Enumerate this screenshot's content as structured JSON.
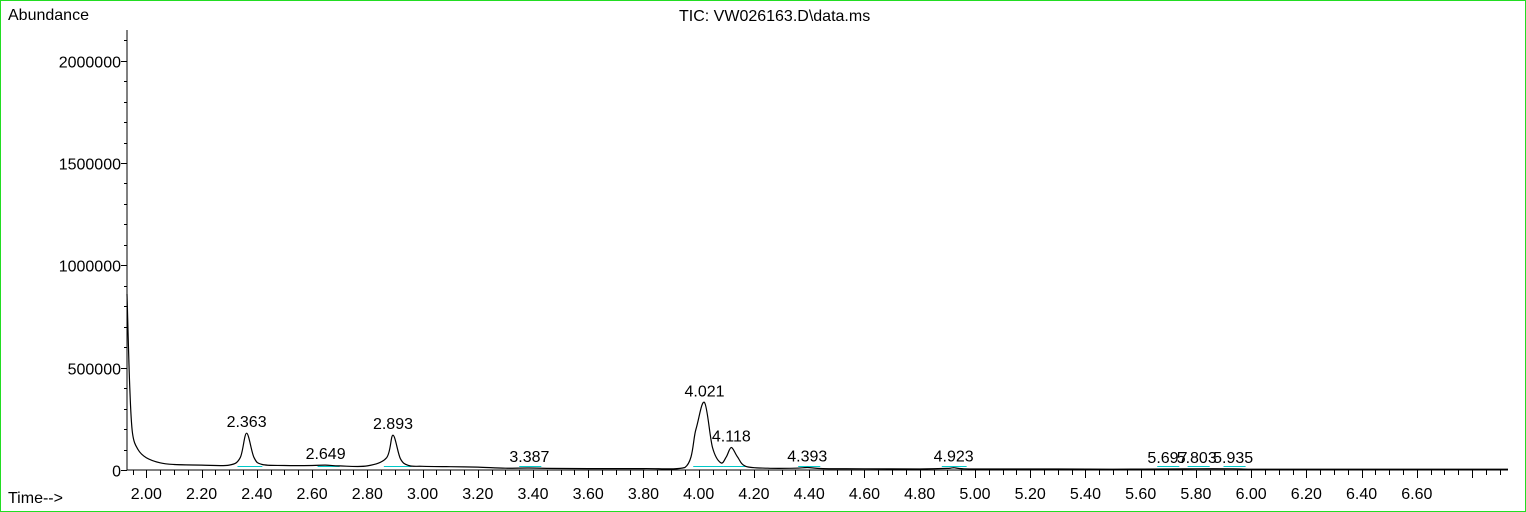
{
  "chart_data": {
    "type": "line",
    "title": "TIC: VW026163.D\\data.ms",
    "xlabel": "Time-->",
    "ylabel": "Abundance",
    "xlim": [
      1.93,
      6.93
    ],
    "ylim": [
      0,
      2150000
    ],
    "x_ticks": [
      2.0,
      2.2,
      2.4,
      2.6,
      2.8,
      3.0,
      3.2,
      3.4,
      3.6,
      3.8,
      4.0,
      4.2,
      4.4,
      4.6,
      4.8,
      5.0,
      5.2,
      5.4,
      5.6,
      5.8,
      6.0,
      6.2,
      6.4,
      6.6
    ],
    "x_tick_labels": [
      "2.00",
      "2.20",
      "2.40",
      "2.60",
      "2.80",
      "3.00",
      "3.20",
      "3.40",
      "3.60",
      "3.80",
      "4.00",
      "4.20",
      "4.40",
      "4.60",
      "4.80",
      "5.00",
      "5.20",
      "5.40",
      "5.60",
      "5.80",
      "6.00",
      "6.20",
      "6.40",
      "6.60"
    ],
    "y_ticks": [
      0,
      500000,
      1000000,
      1500000,
      2000000
    ],
    "y_tick_labels": [
      "0",
      "500000",
      "1000000",
      "1500000",
      "2000000"
    ],
    "grid": false,
    "series": [
      {
        "x": [
          1.93,
          1.94,
          1.95,
          1.97,
          2.0,
          2.05,
          2.1,
          2.2,
          2.3,
          2.34,
          2.363,
          2.39,
          2.42,
          2.5,
          2.6,
          2.649,
          2.7,
          2.8,
          2.87,
          2.893,
          2.92,
          2.95,
          3.0,
          3.1,
          3.2,
          3.3,
          3.387,
          3.45,
          3.6,
          3.8,
          3.95,
          3.99,
          4.021,
          4.05,
          4.08,
          4.1,
          4.118,
          4.14,
          4.17,
          4.25,
          4.35,
          4.393,
          4.45,
          4.6,
          4.8,
          4.9,
          4.923,
          4.96,
          5.1,
          5.3,
          5.5,
          5.7,
          5.8,
          5.935,
          6.0,
          6.2,
          6.4,
          6.6,
          6.8,
          6.93
        ],
        "y": [
          860000,
          400000,
          180000,
          100000,
          60000,
          35000,
          27000,
          24000,
          24000,
          60000,
          180000,
          60000,
          27000,
          22000,
          22000,
          24000,
          20000,
          20000,
          60000,
          170000,
          55000,
          22000,
          18000,
          16000,
          14000,
          9000,
          10000,
          8000,
          7000,
          7000,
          12000,
          200000,
          330000,
          110000,
          35000,
          65000,
          110000,
          65000,
          18000,
          9000,
          9000,
          12000,
          7000,
          6000,
          5000,
          8000,
          11000,
          6000,
          5000,
          5000,
          4000,
          5000,
          6000,
          6000,
          4000,
          4000,
          4000,
          4000,
          4000,
          4000
        ]
      }
    ],
    "peak_labels": [
      {
        "x": 2.363,
        "y": 180000,
        "text": "2.363"
      },
      {
        "x": 2.649,
        "y": 24000,
        "text": "2.649"
      },
      {
        "x": 2.893,
        "y": 170000,
        "text": "2.893"
      },
      {
        "x": 3.387,
        "y": 10000,
        "text": "3.387"
      },
      {
        "x": 4.021,
        "y": 330000,
        "text": "4.021"
      },
      {
        "x": 4.118,
        "y": 110000,
        "text": "4.118"
      },
      {
        "x": 4.393,
        "y": 12000,
        "text": "4.393"
      },
      {
        "x": 4.923,
        "y": 11000,
        "text": "4.923"
      },
      {
        "x": 5.697,
        "y": 5000,
        "text": "5.697"
      },
      {
        "x": 5.803,
        "y": 6000,
        "text": "5.803"
      },
      {
        "x": 5.935,
        "y": 6000,
        "text": "5.935"
      }
    ],
    "baseline_segments": [
      {
        "x": [
          2.33,
          2.42
        ]
      },
      {
        "x": [
          2.62,
          2.7
        ]
      },
      {
        "x": [
          2.86,
          2.96
        ]
      },
      {
        "x": [
          3.35,
          3.43
        ]
      },
      {
        "x": [
          3.98,
          4.09
        ]
      },
      {
        "x": [
          4.09,
          4.17
        ]
      },
      {
        "x": [
          4.36,
          4.44
        ]
      },
      {
        "x": [
          4.88,
          4.97
        ]
      },
      {
        "x": [
          5.66,
          5.74
        ]
      },
      {
        "x": [
          5.77,
          5.85
        ]
      },
      {
        "x": [
          5.9,
          5.98
        ]
      }
    ],
    "colors": {
      "trace": "#000000",
      "baseline": "#00c8c8",
      "frame": "#22dd22"
    }
  }
}
